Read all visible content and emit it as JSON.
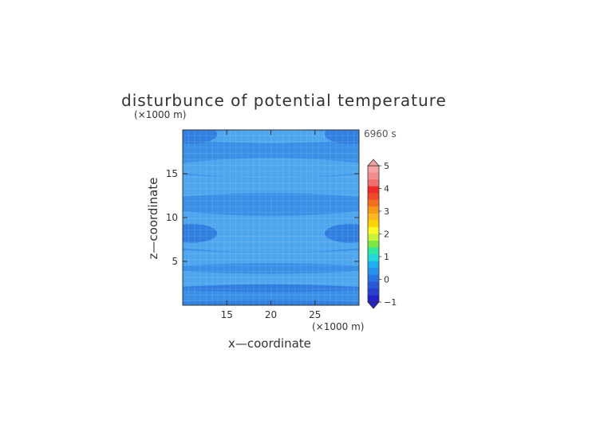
{
  "chart_data": {
    "type": "heatmap",
    "title": "disturbunce of potential temperature",
    "time_label": "6960 s",
    "xlabel": "x—coordinate",
    "ylabel": "z—coordinate",
    "x_unit": "(×1000 m)",
    "y_unit": "(×1000 m)",
    "xlim": [
      10,
      30
    ],
    "ylim": [
      0,
      20
    ],
    "x_ticks": [
      15,
      20,
      25
    ],
    "y_ticks": [
      5,
      10,
      15
    ],
    "colorbar": {
      "min": -1,
      "max": 5,
      "labels": [
        "5",
        "4",
        "3",
        "2",
        "1",
        "0",
        "−1"
      ],
      "colors": [
        "#f4a3a3",
        "#f08c8c",
        "#f07070",
        "#ee2a2a",
        "#f04a2a",
        "#f27020",
        "#f79a18",
        "#fbb820",
        "#f9d400",
        "#fafa2a",
        "#c8f238",
        "#7ae840",
        "#2ee8a0",
        "#22d8d8",
        "#20aef0",
        "#2692ec",
        "#2876e2",
        "#2a5ad6",
        "#2a40cc",
        "#2222cc"
      ]
    },
    "bands": [
      {
        "z0": 0.0,
        "z1": 0.6,
        "shade": "dark"
      },
      {
        "z0": 0.6,
        "z1": 1.5,
        "shade": "mid"
      },
      {
        "z0": 1.5,
        "z1": 2.4,
        "shade": "dark"
      },
      {
        "z0": 2.4,
        "z1": 3.6,
        "shade": "light"
      },
      {
        "z0": 3.6,
        "z1": 4.8,
        "shade": "mid"
      },
      {
        "z0": 4.8,
        "z1": 6.0,
        "shade": "light"
      },
      {
        "z0": 6.0,
        "z1": 8.2,
        "shade": "light"
      },
      {
        "z0": 8.2,
        "z1": 10.2,
        "shade": "light"
      },
      {
        "z0": 10.2,
        "z1": 12.8,
        "shade": "mid"
      },
      {
        "z0": 12.8,
        "z1": 14.5,
        "shade": "light"
      },
      {
        "z0": 14.5,
        "z1": 16.8,
        "shade": "light"
      },
      {
        "z0": 16.8,
        "z1": 18.5,
        "shade": "mid"
      },
      {
        "z0": 18.5,
        "z1": 20.0,
        "shade": "light"
      }
    ],
    "shades": {
      "dark": "#2f7ee0",
      "mid": "#3a8fe6",
      "light": "#4ea6ee"
    }
  }
}
